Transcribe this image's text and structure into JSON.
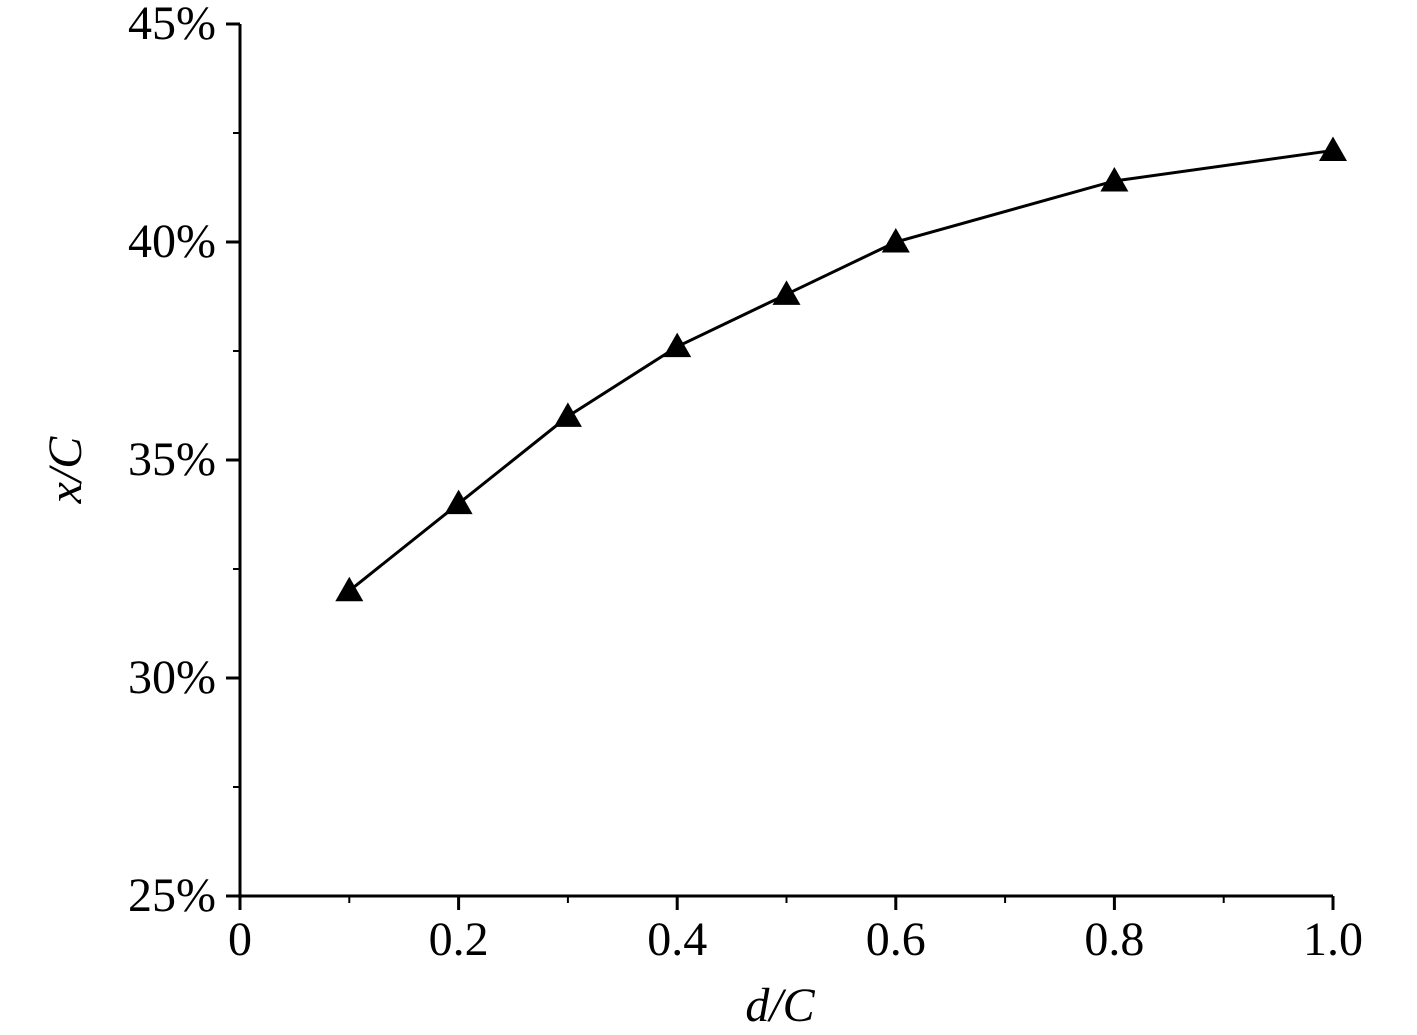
{
  "chart_data": {
    "type": "line",
    "x_label": "d/C",
    "y_label": "x/C",
    "x": [
      0.1,
      0.2,
      0.3,
      0.4,
      0.5,
      0.6,
      0.8,
      1
    ],
    "series": [
      {
        "name": "x/C",
        "color": "#000000",
        "marker": "triangle",
        "values": [
          32.0,
          34.0,
          36.0,
          37.6,
          38.8,
          40.0,
          41.4,
          42.1
        ]
      }
    ],
    "xlim": [
      0,
      1
    ],
    "xticks": [
      0,
      0.2,
      0.4,
      0.6,
      0.8,
      {
        "value": 1,
        "label": "1.0"
      }
    ],
    "xminorticks": [
      0.1,
      0.3,
      0.5,
      0.7,
      0.9
    ],
    "ylim": [
      25,
      45
    ],
    "yticks": [
      {
        "value": 25,
        "label": "25%"
      },
      {
        "value": 30,
        "label": "30%"
      },
      {
        "value": 35,
        "label": "35%"
      },
      {
        "value": 40,
        "label": "40%"
      },
      {
        "value": 45,
        "label": "45%"
      }
    ],
    "yminorticks": [
      27.5,
      32.5,
      37.5,
      42.5
    ],
    "grid": false
  }
}
